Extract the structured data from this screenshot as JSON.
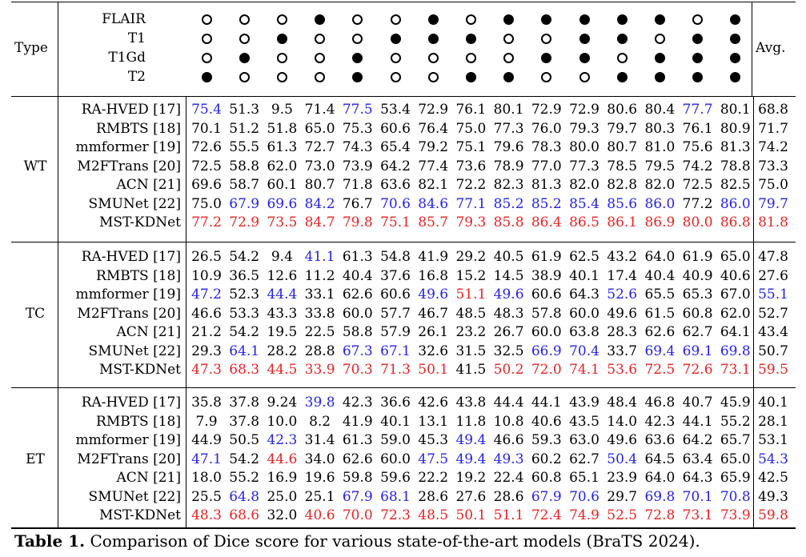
{
  "header": {
    "type_label": "Type",
    "avg_label": "Avg.",
    "modalities": [
      {
        "name": "FLAIR",
        "pattern": [
          0,
          0,
          0,
          1,
          0,
          0,
          1,
          0,
          1,
          1,
          1,
          1,
          1,
          0,
          1
        ]
      },
      {
        "name": "T1",
        "pattern": [
          0,
          0,
          1,
          0,
          0,
          1,
          1,
          1,
          0,
          0,
          1,
          1,
          0,
          1,
          1
        ]
      },
      {
        "name": "T1Gd",
        "pattern": [
          0,
          1,
          0,
          0,
          1,
          0,
          0,
          0,
          0,
          1,
          1,
          0,
          1,
          1,
          1
        ]
      },
      {
        "name": "T2",
        "pattern": [
          1,
          0,
          0,
          0,
          1,
          0,
          0,
          1,
          1,
          0,
          0,
          1,
          1,
          1,
          1
        ]
      }
    ]
  },
  "groups": [
    {
      "label": "WT",
      "rows": [
        {
          "model": "RA-HVED [17]",
          "values": [
            "75.4",
            "51.3",
            "9.5",
            "71.4",
            "77.5",
            "53.4",
            "72.9",
            "76.1",
            "80.1",
            "72.9",
            "72.9",
            "80.6",
            "80.4",
            "77.7",
            "80.1"
          ],
          "avg": "68.8",
          "colors": [
            "blue",
            "",
            "",
            "",
            "blue",
            "",
            "",
            "",
            "",
            "",
            "",
            "",
            "",
            "blue",
            ""
          ],
          "avg_color": ""
        },
        {
          "model": "RMBTS [18]",
          "values": [
            "70.1",
            "51.2",
            "51.8",
            "65.0",
            "75.3",
            "60.6",
            "76.4",
            "75.0",
            "77.3",
            "76.0",
            "79.3",
            "79.7",
            "80.3",
            "76.1",
            "80.9"
          ],
          "avg": "71.7",
          "colors": [
            "",
            "",
            "",
            "",
            "",
            "",
            "",
            "",
            "",
            "",
            "",
            "",
            "",
            "",
            ""
          ],
          "avg_color": ""
        },
        {
          "model": "mmformer [19]",
          "values": [
            "72.6",
            "55.5",
            "61.3",
            "72.7",
            "74.3",
            "65.4",
            "79.2",
            "75.1",
            "79.6",
            "78.3",
            "80.0",
            "80.7",
            "81.0",
            "75.6",
            "81.3"
          ],
          "avg": "74.2",
          "colors": [
            "",
            "",
            "",
            "",
            "",
            "",
            "",
            "",
            "",
            "",
            "",
            "",
            "",
            "",
            ""
          ],
          "avg_color": ""
        },
        {
          "model": "M2FTrans [20]",
          "values": [
            "72.5",
            "58.8",
            "62.0",
            "73.0",
            "73.9",
            "64.2",
            "77.4",
            "73.6",
            "78.9",
            "77.0",
            "77.3",
            "78.5",
            "79.5",
            "74.2",
            "78.8"
          ],
          "avg": "73.3",
          "colors": [
            "",
            "",
            "",
            "",
            "",
            "",
            "",
            "",
            "",
            "",
            "",
            "",
            "",
            "",
            ""
          ],
          "avg_color": ""
        },
        {
          "model": "ACN [21]",
          "values": [
            "69.6",
            "58.7",
            "60.1",
            "80.7",
            "71.8",
            "63.6",
            "82.1",
            "72.2",
            "82.3",
            "81.3",
            "82.0",
            "82.8",
            "82.0",
            "72.5",
            "82.5"
          ],
          "avg": "75.0",
          "colors": [
            "",
            "",
            "",
            "",
            "",
            "",
            "",
            "",
            "",
            "",
            "",
            "",
            "",
            "",
            ""
          ],
          "avg_color": ""
        },
        {
          "model": "SMUNet [22]",
          "values": [
            "75.0",
            "67.9",
            "69.6",
            "84.2",
            "76.7",
            "70.6",
            "84.6",
            "77.1",
            "85.2",
            "85.2",
            "85.4",
            "85.6",
            "86.0",
            "77.2",
            "86.0"
          ],
          "avg": "79.7",
          "colors": [
            "",
            "blue",
            "blue",
            "blue",
            "",
            "blue",
            "blue",
            "blue",
            "blue",
            "blue",
            "blue",
            "blue",
            "blue",
            "",
            "blue"
          ],
          "avg_color": "blue"
        },
        {
          "model": "MST-KDNet",
          "values": [
            "77.2",
            "72.9",
            "73.5",
            "84.7",
            "79.8",
            "75.1",
            "85.7",
            "79.3",
            "85.8",
            "86.4",
            "86.5",
            "86.1",
            "86.9",
            "80.0",
            "86.8"
          ],
          "avg": "81.8",
          "colors": [
            "red",
            "red",
            "red",
            "red",
            "red",
            "red",
            "red",
            "red",
            "red",
            "red",
            "red",
            "red",
            "red",
            "red",
            "red"
          ],
          "avg_color": "red"
        }
      ]
    },
    {
      "label": "TC",
      "rows": [
        {
          "model": "RA-HVED [17]",
          "values": [
            "26.5",
            "54.2",
            "9.4",
            "41.1",
            "61.3",
            "54.8",
            "41.9",
            "29.2",
            "40.5",
            "61.9",
            "62.5",
            "43.2",
            "64.0",
            "61.9",
            "65.0"
          ],
          "avg": "47.8",
          "colors": [
            "",
            "",
            "",
            "blue",
            "",
            "",
            "",
            "",
            "",
            "",
            "",
            "",
            "",
            "",
            ""
          ],
          "avg_color": ""
        },
        {
          "model": "RMBTS [18]",
          "values": [
            "10.9",
            "36.5",
            "12.6",
            "11.2",
            "40.4",
            "37.6",
            "16.8",
            "15.2",
            "14.5",
            "38.9",
            "40.1",
            "17.4",
            "40.4",
            "40.9",
            "40.6"
          ],
          "avg": "27.6",
          "colors": [
            "",
            "",
            "",
            "",
            "",
            "",
            "",
            "",
            "",
            "",
            "",
            "",
            "",
            "",
            ""
          ],
          "avg_color": ""
        },
        {
          "model": "mmformer [19]",
          "values": [
            "47.2",
            "52.3",
            "44.4",
            "33.1",
            "62.6",
            "60.6",
            "49.6",
            "51.1",
            "49.6",
            "60.6",
            "64.3",
            "52.6",
            "65.5",
            "65.3",
            "67.0"
          ],
          "avg": "55.1",
          "colors": [
            "blue",
            "",
            "blue",
            "",
            "",
            "",
            "blue",
            "red",
            "blue",
            "",
            "",
            "blue",
            "",
            "",
            ""
          ],
          "avg_color": "blue"
        },
        {
          "model": "M2FTrans [20]",
          "values": [
            "46.6",
            "53.3",
            "43.3",
            "33.8",
            "60.0",
            "57.7",
            "46.7",
            "48.5",
            "48.3",
            "57.8",
            "60.0",
            "49.6",
            "61.5",
            "60.8",
            "62.0"
          ],
          "avg": "52.7",
          "colors": [
            "",
            "",
            "",
            "",
            "",
            "",
            "",
            "",
            "",
            "",
            "",
            "",
            "",
            "",
            ""
          ],
          "avg_color": ""
        },
        {
          "model": "ACN [21]",
          "values": [
            "21.2",
            "54.2",
            "19.5",
            "22.5",
            "58.8",
            "57.9",
            "26.1",
            "23.2",
            "26.7",
            "60.0",
            "63.8",
            "28.3",
            "62.6",
            "62.7",
            "64.1"
          ],
          "avg": "43.4",
          "colors": [
            "",
            "",
            "",
            "",
            "",
            "",
            "",
            "",
            "",
            "",
            "",
            "",
            "",
            "",
            ""
          ],
          "avg_color": ""
        },
        {
          "model": "SMUNet [22]",
          "values": [
            "29.3",
            "64.1",
            "28.2",
            "28.8",
            "67.3",
            "67.1",
            "32.6",
            "31.5",
            "32.5",
            "66.9",
            "70.4",
            "33.7",
            "69.4",
            "69.1",
            "69.8"
          ],
          "avg": "50.7",
          "colors": [
            "",
            "blue",
            "",
            "",
            "blue",
            "blue",
            "",
            "",
            "",
            "blue",
            "blue",
            "",
            "blue",
            "blue",
            "blue"
          ],
          "avg_color": ""
        },
        {
          "model": "MST-KDNet",
          "values": [
            "47.3",
            "68.3",
            "44.5",
            "33.9",
            "70.3",
            "71.3",
            "50.1",
            "41.5",
            "50.2",
            "72.0",
            "74.1",
            "53.6",
            "72.5",
            "72.6",
            "73.1"
          ],
          "avg": "59.5",
          "colors": [
            "red",
            "red",
            "red",
            "red",
            "red",
            "red",
            "red",
            "",
            "red",
            "red",
            "red",
            "red",
            "red",
            "red",
            "red"
          ],
          "avg_color": "red"
        }
      ]
    },
    {
      "label": "ET",
      "rows": [
        {
          "model": "RA-HVED [17]",
          "values": [
            "35.8",
            "37.8",
            "9.24",
            "39.8",
            "42.3",
            "36.6",
            "42.6",
            "43.8",
            "44.4",
            "44.1",
            "43.9",
            "48.4",
            "46.8",
            "40.7",
            "45.9"
          ],
          "avg": "40.1",
          "colors": [
            "",
            "",
            "",
            "blue",
            "",
            "",
            "",
            "",
            "",
            "",
            "",
            "",
            "",
            "",
            ""
          ],
          "avg_color": ""
        },
        {
          "model": "RMBTS [18]",
          "values": [
            "7.9",
            "37.8",
            "10.0",
            "8.2",
            "41.9",
            "40.1",
            "13.1",
            "11.8",
            "10.8",
            "40.6",
            "43.5",
            "14.0",
            "42.3",
            "44.1",
            "55.2"
          ],
          "avg": "28.1",
          "colors": [
            "",
            "",
            "",
            "",
            "",
            "",
            "",
            "",
            "",
            "",
            "",
            "",
            "",
            "",
            ""
          ],
          "avg_color": ""
        },
        {
          "model": "mmformer [19]",
          "values": [
            "44.9",
            "50.5",
            "42.3",
            "31.4",
            "61.3",
            "59.0",
            "45.3",
            "49.4",
            "46.6",
            "59.3",
            "63.0",
            "49.6",
            "63.6",
            "64.2",
            "65.7"
          ],
          "avg": "53.1",
          "colors": [
            "",
            "",
            "blue",
            "",
            "",
            "",
            "",
            "blue",
            "",
            "",
            "",
            "",
            "",
            "",
            ""
          ],
          "avg_color": ""
        },
        {
          "model": "M2FTrans [20]",
          "values": [
            "47.1",
            "54.2",
            "44.6",
            "34.0",
            "62.6",
            "60.0",
            "47.5",
            "49.4",
            "49.3",
            "60.2",
            "62.7",
            "50.4",
            "64.5",
            "63.4",
            "65.0"
          ],
          "avg": "54.3",
          "colors": [
            "blue",
            "",
            "red",
            "",
            "",
            "",
            "blue",
            "blue",
            "blue",
            "",
            "",
            "blue",
            "",
            "",
            ""
          ],
          "avg_color": "blue"
        },
        {
          "model": "ACN [21]",
          "values": [
            "18.0",
            "55.2",
            "16.9",
            "19.6",
            "59.8",
            "59.6",
            "22.2",
            "19.2",
            "22.4",
            "60.8",
            "65.1",
            "23.9",
            "64.0",
            "64.3",
            "65.9"
          ],
          "avg": "42.5",
          "colors": [
            "",
            "",
            "",
            "",
            "",
            "",
            "",
            "",
            "",
            "",
            "",
            "",
            "",
            "",
            ""
          ],
          "avg_color": ""
        },
        {
          "model": "SMUNet [22]",
          "values": [
            "25.5",
            "64.8",
            "25.0",
            "25.1",
            "67.9",
            "68.1",
            "28.6",
            "27.6",
            "28.6",
            "67.9",
            "70.6",
            "29.7",
            "69.8",
            "70.1",
            "70.8"
          ],
          "avg": "49.3",
          "colors": [
            "",
            "blue",
            "",
            "",
            "blue",
            "blue",
            "",
            "",
            "",
            "blue",
            "blue",
            "",
            "blue",
            "blue",
            "blue"
          ],
          "avg_color": ""
        },
        {
          "model": "MST-KDNet",
          "values": [
            "48.3",
            "68.6",
            "32.0",
            "40.6",
            "70.0",
            "72.3",
            "48.5",
            "50.1",
            "51.1",
            "72.4",
            "74.9",
            "52.5",
            "72.8",
            "73.1",
            "73.9"
          ],
          "avg": "59.8",
          "colors": [
            "red",
            "red",
            "",
            "red",
            "red",
            "red",
            "red",
            "red",
            "red",
            "red",
            "red",
            "red",
            "red",
            "red",
            "red"
          ],
          "avg_color": "red"
        }
      ]
    }
  ],
  "caption": {
    "label": "Table 1.",
    "text": "Comparison of Dice score for various state-of-the-art models (BraTS 2024)."
  }
}
